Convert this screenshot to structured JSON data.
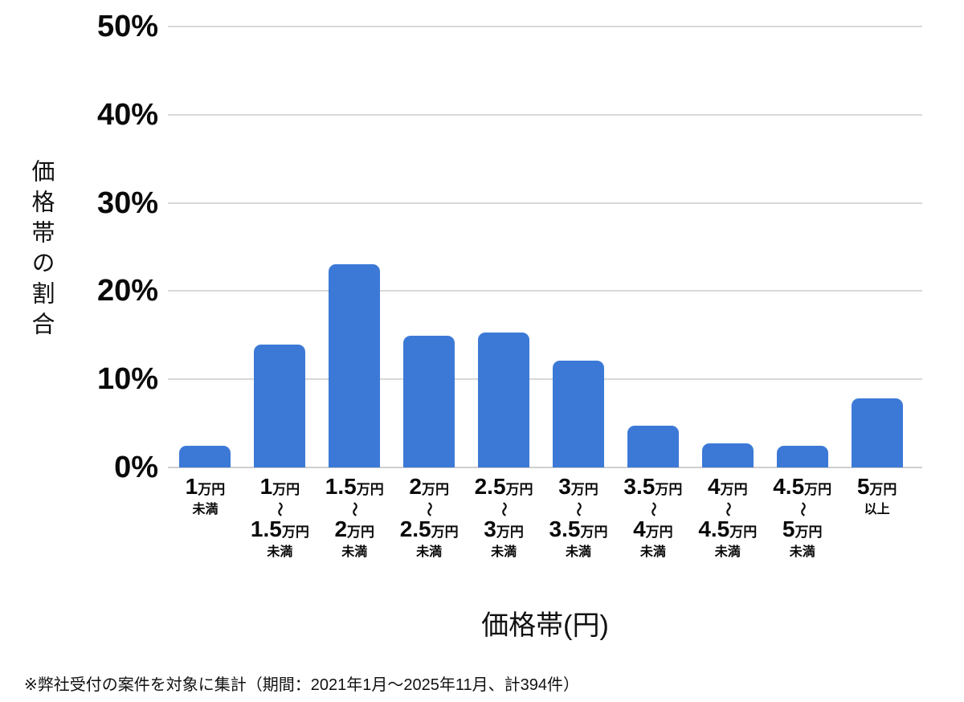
{
  "chart_data": {
    "type": "bar",
    "title": "",
    "xlabel": "価格帯(円)",
    "ylabel": "価格帯の割合",
    "categories": [
      [
        "1万円",
        "未満"
      ],
      [
        "1万円",
        "～",
        "1.5万円",
        "未満"
      ],
      [
        "1.5万円",
        "～",
        "2万円",
        "未満"
      ],
      [
        "2万円",
        "～",
        "2.5万円",
        "未満"
      ],
      [
        "2.5万円",
        "～",
        "3万円",
        "未満"
      ],
      [
        "3万円",
        "～",
        "3.5万円",
        "未満"
      ],
      [
        "3.5万円",
        "～",
        "4万円",
        "未満"
      ],
      [
        "4万円",
        "～",
        "4.5万円",
        "未満"
      ],
      [
        "4.5万円",
        "～",
        "5万円",
        "未満"
      ],
      [
        "5万円",
        "以上"
      ]
    ],
    "values": [
      2.5,
      13.9,
      23.0,
      14.9,
      15.3,
      12.1,
      4.7,
      2.7,
      2.5,
      7.8
    ],
    "unit": "%",
    "yticks": [
      "50%",
      "40%",
      "30%",
      "20%",
      "10%",
      "0%"
    ],
    "ylim": [
      0,
      50
    ],
    "grid": true,
    "legend": "none",
    "bar_color": "#3c79d7",
    "gridline_color": "#d8d8d8"
  },
  "footnote": "※弊社受付の案件を対象に集計（期間：2021年1月～2025年11月、計394件）"
}
